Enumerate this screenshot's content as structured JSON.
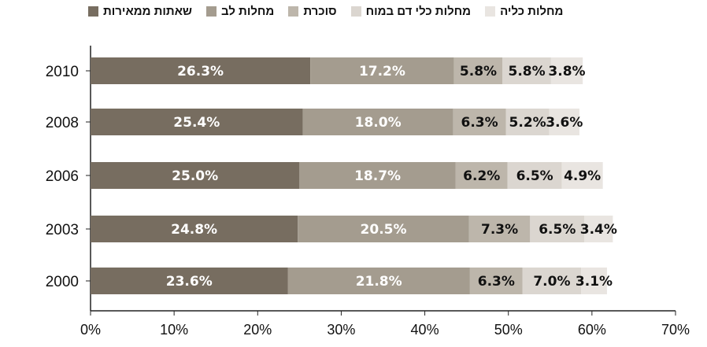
{
  "chart_data": {
    "type": "bar",
    "orientation": "horizontal",
    "stacked": true,
    "categories": [
      "2010",
      "2008",
      "2006",
      "2003",
      "2000"
    ],
    "series": [
      {
        "name": "שאתות ממאירות",
        "color": "#776d60",
        "values": [
          26.3,
          25.4,
          25.0,
          24.8,
          23.6
        ]
      },
      {
        "name": "מחלות לב",
        "color": "#a49c8f",
        "values": [
          17.2,
          18.0,
          18.7,
          20.5,
          21.8
        ]
      },
      {
        "name": "סוכרת",
        "color": "#bdb6ab",
        "values": [
          5.8,
          6.3,
          6.2,
          7.3,
          6.3
        ]
      },
      {
        "name": "מחלות כלי דם במוח",
        "color": "#dbd6d0",
        "values": [
          5.8,
          5.2,
          6.5,
          6.5,
          7.0
        ]
      },
      {
        "name": "מחלות כליה",
        "color": "#e9e5e1",
        "values": [
          3.8,
          3.6,
          4.9,
          3.4,
          3.1
        ]
      }
    ],
    "xlim": [
      0,
      70
    ],
    "xticks": [
      "0%",
      "10%",
      "20%",
      "30%",
      "40%",
      "50%",
      "60%",
      "70%"
    ],
    "legend_position": "top"
  }
}
